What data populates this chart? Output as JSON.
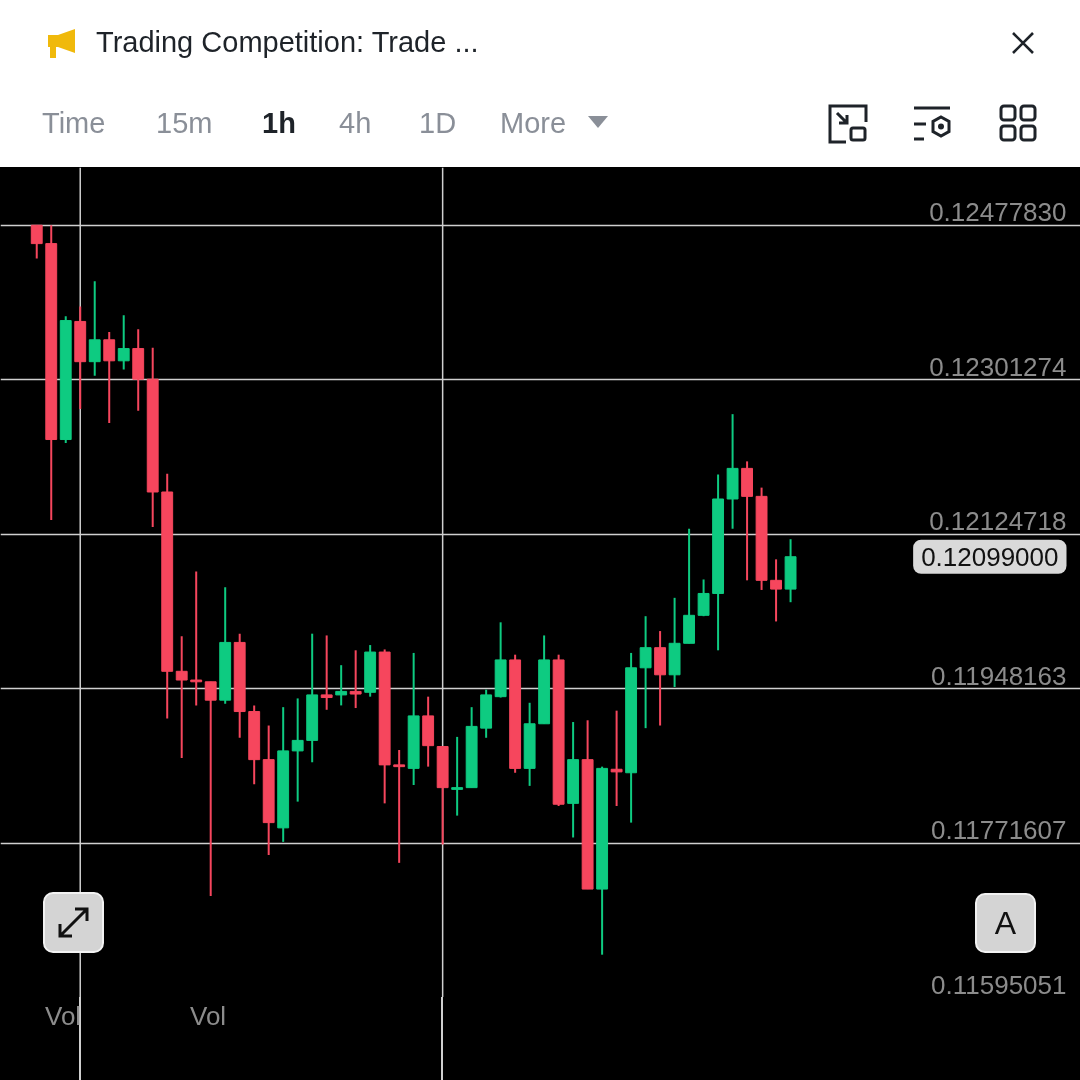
{
  "chart_data": {
    "type": "candlestick",
    "title": "Trading Competition: Trade ...",
    "categories": [
      null,
      null,
      null,
      null,
      null,
      null,
      null,
      null,
      null,
      null,
      null,
      null,
      null,
      null,
      null,
      null,
      null,
      null,
      null,
      null,
      null,
      null,
      null,
      null,
      null,
      null,
      null,
      null,
      null,
      null,
      null,
      null,
      null,
      null,
      null,
      null,
      null,
      null,
      null,
      null,
      null,
      null,
      null,
      null,
      null,
      null,
      null,
      null,
      null,
      null,
      null,
      null,
      null
    ],
    "ohlc": [
      [
        0.12478,
        0.12478,
        0.1244,
        0.12457
      ],
      [
        0.12457,
        0.12478,
        0.12141,
        0.12233
      ],
      [
        0.12233,
        0.12374,
        0.12229,
        0.12369
      ],
      [
        0.12368,
        0.12385,
        0.12268,
        0.12322
      ],
      [
        0.12322,
        0.12414,
        0.12306,
        0.12347
      ],
      [
        0.12347,
        0.12356,
        0.12252,
        0.12323
      ],
      [
        0.12323,
        0.12375,
        0.12313,
        0.12337
      ],
      [
        0.12337,
        0.12359,
        0.12266,
        0.12302
      ],
      [
        0.12302,
        0.12338,
        0.12133,
        0.12173
      ],
      [
        0.12173,
        0.12194,
        0.11914,
        0.11968
      ],
      [
        0.11968,
        0.12008,
        0.11869,
        0.11958
      ],
      [
        0.11958,
        0.12082,
        0.11929,
        0.11956
      ],
      [
        0.11956,
        0.11956,
        0.11711,
        0.11935
      ],
      [
        0.11935,
        0.12064,
        0.11931,
        0.12001
      ],
      [
        0.12001,
        0.12011,
        0.11892,
        0.11922
      ],
      [
        0.11922,
        0.11929,
        0.11839,
        0.11867
      ],
      [
        0.11867,
        0.11906,
        0.11758,
        0.11795
      ],
      [
        0.11789,
        0.11927,
        0.11773,
        0.11877
      ],
      [
        0.11877,
        0.11937,
        0.11819,
        0.11889
      ],
      [
        0.11889,
        0.12011,
        0.11864,
        0.11941
      ],
      [
        0.11941,
        0.12009,
        0.11924,
        0.11938
      ],
      [
        0.11941,
        0.11975,
        0.11929,
        0.11945
      ],
      [
        0.11945,
        0.11992,
        0.11926,
        0.11942
      ],
      [
        0.11944,
        0.11998,
        0.11939,
        0.1199
      ],
      [
        0.1199,
        0.11993,
        0.11817,
        0.11861
      ],
      [
        0.11861,
        0.11878,
        0.11749,
        0.11859
      ],
      [
        0.11857,
        0.11989,
        0.11838,
        0.11917
      ],
      [
        0.11917,
        0.11939,
        0.11859,
        0.11883
      ],
      [
        0.11882,
        0.11882,
        0.1177,
        0.11835
      ],
      [
        0.11833,
        0.11893,
        0.11803,
        0.11835
      ],
      [
        0.11835,
        0.11927,
        0.11835,
        0.11905
      ],
      [
        0.11903,
        0.11947,
        0.11892,
        0.11941
      ],
      [
        0.11939,
        0.12024,
        0.11938,
        0.11981
      ],
      [
        0.11981,
        0.11987,
        0.11852,
        0.11857
      ],
      [
        0.11857,
        0.11932,
        0.11837,
        0.11908
      ],
      [
        0.11908,
        0.12009,
        0.11908,
        0.11981
      ],
      [
        0.11981,
        0.11987,
        0.11814,
        0.11816
      ],
      [
        0.11817,
        0.1191,
        0.11778,
        0.11867
      ],
      [
        0.11867,
        0.11912,
        0.11719,
        0.11719
      ],
      [
        0.11719,
        0.11859,
        0.11644,
        0.11857
      ],
      [
        0.11856,
        0.11923,
        0.11814,
        0.11853
      ],
      [
        0.11852,
        0.11989,
        0.11795,
        0.11972
      ],
      [
        0.11972,
        0.12031,
        0.11903,
        0.11995
      ],
      [
        0.11995,
        0.12014,
        0.11906,
        0.11964
      ],
      [
        0.11964,
        0.12052,
        0.1195,
        0.12
      ],
      [
        0.12,
        0.12131,
        0.12,
        0.12032
      ],
      [
        0.12032,
        0.12073,
        0.12031,
        0.12057
      ],
      [
        0.12057,
        0.12193,
        0.11992,
        0.12165
      ],
      [
        0.12165,
        0.12262,
        0.12131,
        0.122
      ],
      [
        0.122,
        0.12208,
        0.12072,
        0.12168
      ],
      [
        0.12168,
        0.12178,
        0.12061,
        0.12072
      ],
      [
        0.12072,
        0.12096,
        0.12025,
        0.12062
      ],
      [
        0.12062,
        0.12119,
        0.12047,
        0.12099
      ]
    ],
    "colors": [
      "#f6465d",
      "#f6465d",
      "#0ecb81",
      "#f6465d",
      "#0ecb81",
      "#f6465d",
      "#0ecb81",
      "#f6465d",
      "#f6465d",
      "#f6465d",
      "#f6465d",
      "#f6465d",
      "#f6465d",
      "#0ecb81",
      "#f6465d",
      "#f6465d",
      "#f6465d",
      "#0ecb81",
      "#0ecb81",
      "#0ecb81",
      "#f6465d",
      "#0ecb81",
      "#f6465d",
      "#0ecb81",
      "#f6465d",
      "#f6465d",
      "#0ecb81",
      "#f6465d",
      "#f6465d",
      "#0ecb81",
      "#0ecb81",
      "#0ecb81",
      "#0ecb81",
      "#f6465d",
      "#0ecb81",
      "#0ecb81",
      "#f6465d",
      "#0ecb81",
      "#f6465d",
      "#0ecb81",
      "#f6465d",
      "#0ecb81",
      "#0ecb81",
      "#f6465d",
      "#0ecb81",
      "#0ecb81",
      "#0ecb81",
      "#0ecb81",
      "#0ecb81",
      "#f6465d",
      "#f6465d",
      "#f6465d",
      "#0ecb81"
    ],
    "ylim": [
      0.11595051,
      0.12544
    ],
    "yticks": [
      {
        "value": 0.1247783,
        "label": "0.12477830"
      },
      {
        "value": 0.12301274,
        "label": "0.12301274"
      },
      {
        "value": 0.12124718,
        "label": "0.12124718"
      },
      {
        "value": 0.11948163,
        "label": "0.11948163"
      },
      {
        "value": 0.11771607,
        "label": "0.11771607"
      },
      {
        "value": 0.11595051,
        "label": "0.11595051"
      }
    ],
    "grid": "y",
    "annotations": [
      "Time",
      "15m",
      "1h",
      "4h",
      "1D",
      "More",
      "Vol",
      "Vol",
      "A",
      "0.12099000"
    ]
  }
}
